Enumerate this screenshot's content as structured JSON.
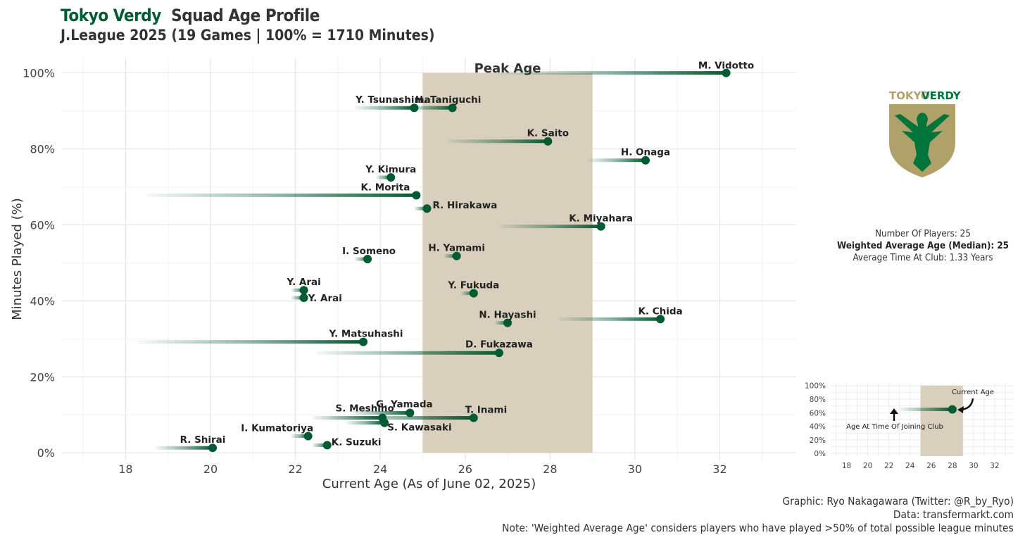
{
  "header": {
    "team": "Tokyo Verdy",
    "title_rest": "Squad Age Profile",
    "subtitle": "J.League 2025 (19 Games | 100% = 1710 Minutes)"
  },
  "colors": {
    "player": "#005a32",
    "peak_band": "#d9cfbd",
    "crest_gold": "#b0a06a",
    "crest_green": "#00753a"
  },
  "chart_data": {
    "type": "scatter",
    "xlabel": "Current Age (As of June 02, 2025)",
    "ylabel": "Minutes Played (%)",
    "xlim": [
      16.5,
      33.8
    ],
    "ylim": [
      -2,
      104
    ],
    "x_ticks": [
      18,
      20,
      22,
      24,
      26,
      28,
      30,
      32
    ],
    "y_ticks": [
      0,
      20,
      40,
      60,
      80,
      100
    ],
    "y_tick_labels": [
      "0%",
      "20%",
      "40%",
      "60%",
      "80%",
      "100%"
    ],
    "peak_age": {
      "label": "Peak Age",
      "from": 25,
      "to": 29
    },
    "players": [
      {
        "name": "M. Vidotto",
        "age": 32.15,
        "minutes_pct": 100,
        "joined_age": 26.8
      },
      {
        "name": "Y. Tsunashima",
        "age": 24.8,
        "minutes_pct": 90.8,
        "joined_age": 23.4
      },
      {
        "name": "H. Taniguchi",
        "age": 25.7,
        "minutes_pct": 90.8,
        "joined_age": 24.6
      },
      {
        "name": "K. Saito",
        "age": 27.95,
        "minutes_pct": 82,
        "joined_age": 25.6
      },
      {
        "name": "H. Onaga",
        "age": 30.25,
        "minutes_pct": 77,
        "joined_age": 28.9
      },
      {
        "name": "Y. Kimura",
        "age": 24.25,
        "minutes_pct": 72.5,
        "joined_age": 23.9
      },
      {
        "name": "K. Morita",
        "age": 24.85,
        "minutes_pct": 67.8,
        "joined_age": 18.5
      },
      {
        "name": "R. Hirakawa",
        "age": 25.1,
        "minutes_pct": 64.3,
        "joined_age": 24.8
      },
      {
        "name": "K. Miyahara",
        "age": 29.2,
        "minutes_pct": 59.6,
        "joined_age": 26.8
      },
      {
        "name": "I. Someno",
        "age": 23.7,
        "minutes_pct": 51,
        "joined_age": 23.4
      },
      {
        "name": "H. Yamami",
        "age": 25.8,
        "minutes_pct": 51.8,
        "joined_age": 25.5
      },
      {
        "name": "Y. Arai",
        "age": 22.2,
        "minutes_pct": 42.8,
        "joined_age": 21.9
      },
      {
        "name": "Y. Arai",
        "age": 22.2,
        "minutes_pct": 40.8,
        "joined_age": 21.9
      },
      {
        "name": "Y. Fukuda",
        "age": 26.2,
        "minutes_pct": 42,
        "joined_age": 25.9
      },
      {
        "name": "N. Hayashi",
        "age": 27,
        "minutes_pct": 34.2,
        "joined_age": 26.7
      },
      {
        "name": "K. Chida",
        "age": 30.6,
        "minutes_pct": 35.2,
        "joined_age": 28.2
      },
      {
        "name": "Y. Matsuhashi",
        "age": 23.6,
        "minutes_pct": 29.2,
        "joined_age": 18.3
      },
      {
        "name": "D. Fukazawa",
        "age": 26.8,
        "minutes_pct": 26.3,
        "joined_age": 22.5
      },
      {
        "name": "G. Yamada",
        "age": 24.7,
        "minutes_pct": 10.5,
        "joined_age": 23.3
      },
      {
        "name": "S. Meshino",
        "age": 24.05,
        "minutes_pct": 9.2,
        "joined_age": 22.4
      },
      {
        "name": "T. Inami",
        "age": 26.2,
        "minutes_pct": 9.2,
        "joined_age": 22.8
      },
      {
        "name": "S. Kawasaki",
        "age": 24.1,
        "minutes_pct": 7.9,
        "joined_age": 23.2
      },
      {
        "name": "I. Kumatoriya",
        "age": 22.3,
        "minutes_pct": 4.4,
        "joined_age": 21.9
      },
      {
        "name": "K. Suzuki",
        "age": 22.75,
        "minutes_pct": 2,
        "joined_age": 22.4
      },
      {
        "name": "R. Shirai",
        "age": 20.05,
        "minutes_pct": 1.3,
        "joined_age": 18.7
      }
    ]
  },
  "legend_chart": {
    "x_ticks": [
      18,
      20,
      22,
      24,
      26,
      28,
      30,
      32
    ],
    "y_tick_labels": [
      "0%",
      "20%",
      "40%",
      "60%",
      "80%",
      "100%"
    ],
    "example": {
      "age": 28,
      "joined_age": 23,
      "minutes_pct": 65
    },
    "current_age_label": "Current Age",
    "joined_label": "Age At Time Of Joining Club"
  },
  "crest": {
    "text_gold": "TOKYO",
    "text_green": "VERDY"
  },
  "info": {
    "num_players": "Number Of Players: 25",
    "weighted_avg": "Weighted Average Age (Median): 25",
    "avg_time": "Average Time At Club: 1.33 Years"
  },
  "captions": {
    "graphic": "Graphic: Ryo Nakagawara (Twitter: @R_by_Ryo)",
    "data": "Data: transfermarkt.com",
    "note": "Note: 'Weighted Average Age' considers players who have played >50% of total possible league minutes"
  }
}
